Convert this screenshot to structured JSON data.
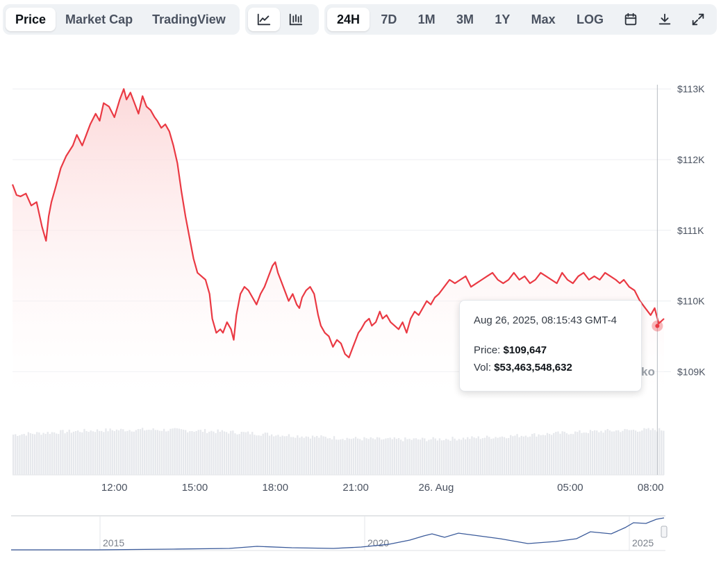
{
  "toolbar": {
    "metric_tabs": [
      "Price",
      "Market Cap",
      "TradingView"
    ],
    "active_metric": "Price",
    "chart_style_icons": [
      "line-chart-icon",
      "candlestick-chart-icon"
    ],
    "ranges": [
      "24H",
      "7D",
      "1M",
      "3M",
      "1Y",
      "Max"
    ],
    "active_range": "24H",
    "log_label": "LOG",
    "action_icons": [
      "calendar-icon",
      "download-icon",
      "expand-icon"
    ]
  },
  "colors": {
    "line": "#ea3943",
    "area_top": "#fcd7d8",
    "volume": "#e6e8ec",
    "navigator_line": "#3a5a9a",
    "grid": "#eceef1"
  },
  "tooltip": {
    "date": "Aug 26, 2025, 08:15:43 GMT-4",
    "price_label": "Price:",
    "price_value": "$109,647",
    "vol_label": "Vol:",
    "vol_value": "$53,463,548,632"
  },
  "watermark_text": "ko",
  "chart_data": {
    "type": "line",
    "title": "",
    "y_axis": {
      "ticks": [
        "$109K",
        "$110K",
        "$111K",
        "$112K",
        "$113K"
      ],
      "tick_values": [
        109000,
        110000,
        111000,
        112000,
        113000
      ],
      "range": [
        108650,
        113100
      ]
    },
    "x_axis": {
      "ticks": [
        "12:00",
        "15:00",
        "18:00",
        "21:00",
        "26. Aug",
        "05:00",
        "08:00"
      ],
      "tick_hours": [
        12,
        15,
        18,
        21,
        24,
        29,
        32
      ],
      "range_hours": [
        8.2,
        32.5
      ]
    },
    "series": [
      {
        "x_hours": [
          8.2,
          8.35,
          8.5,
          8.7,
          8.9,
          9.1,
          9.3,
          9.45,
          9.55,
          9.65,
          9.8,
          10.0,
          10.2,
          10.45,
          10.6,
          10.8,
          10.95,
          11.1,
          11.3,
          11.45,
          11.6,
          11.8,
          12.0,
          12.2,
          12.35,
          12.45,
          12.6,
          12.75,
          12.9,
          13.05,
          13.2,
          13.35,
          13.5,
          13.6,
          13.75,
          13.9,
          14.05,
          14.2,
          14.35,
          14.5,
          14.65,
          14.8,
          14.95,
          15.1,
          15.25,
          15.4,
          15.55,
          15.65,
          15.8,
          15.95,
          16.05,
          16.2,
          16.35,
          16.45,
          16.55,
          16.7,
          16.85,
          17.0,
          17.15,
          17.3,
          17.45,
          17.6,
          17.75,
          17.9,
          18.0,
          18.1,
          18.2,
          18.35,
          18.5,
          18.65,
          18.8,
          18.9,
          19.0,
          19.15,
          19.3,
          19.45,
          19.6,
          19.7,
          19.85,
          20.0,
          20.15,
          20.3,
          20.45,
          20.6,
          20.75,
          20.9,
          21.0,
          21.1,
          21.2,
          21.35,
          21.5,
          21.6,
          21.75,
          21.9,
          22.0,
          22.15,
          22.3,
          22.45,
          22.6,
          22.75,
          22.9,
          23.05,
          23.2,
          23.35,
          23.5,
          23.65,
          23.8,
          23.95,
          24.1,
          24.3,
          24.5,
          24.7,
          24.9,
          25.1,
          25.3,
          25.5,
          25.7,
          25.9,
          26.1,
          26.3,
          26.5,
          26.7,
          26.9,
          27.1,
          27.3,
          27.5,
          27.7,
          27.9,
          28.1,
          28.3,
          28.5,
          28.7,
          28.9,
          29.1,
          29.3,
          29.5,
          29.7,
          29.9,
          30.1,
          30.3,
          30.5,
          30.7,
          30.85,
          31.0,
          31.2,
          31.4,
          31.6,
          31.8,
          32.0,
          32.15,
          32.3,
          32.5
        ],
        "y_values": [
          111650,
          111500,
          111480,
          111520,
          111350,
          111400,
          111050,
          110850,
          111200,
          111400,
          111600,
          111880,
          112050,
          112200,
          112350,
          112200,
          112350,
          112500,
          112650,
          112550,
          112800,
          112750,
          112600,
          112850,
          113000,
          112850,
          112950,
          112800,
          112650,
          112900,
          112750,
          112700,
          112600,
          112550,
          112450,
          112500,
          112400,
          112200,
          111950,
          111550,
          111200,
          110900,
          110600,
          110400,
          110350,
          110300,
          110100,
          109750,
          109550,
          109600,
          109550,
          109700,
          109600,
          109450,
          109800,
          110100,
          110200,
          110150,
          110050,
          109950,
          110100,
          110200,
          110350,
          110500,
          110550,
          110400,
          110300,
          110150,
          110000,
          110100,
          109950,
          109900,
          110050,
          110150,
          110200,
          110100,
          109800,
          109650,
          109550,
          109500,
          109350,
          109450,
          109400,
          109250,
          109200,
          109350,
          109450,
          109550,
          109600,
          109700,
          109750,
          109650,
          109700,
          109850,
          109750,
          109800,
          109700,
          109650,
          109600,
          109700,
          109550,
          109750,
          109850,
          109800,
          109900,
          110000,
          109950,
          110050,
          110100,
          110200,
          110300,
          110250,
          110300,
          110350,
          110200,
          110250,
          110300,
          110350,
          110400,
          110300,
          110250,
          110300,
          110400,
          110300,
          110350,
          110250,
          110300,
          110400,
          110350,
          110300,
          110250,
          110400,
          110300,
          110250,
          110350,
          110400,
          110300,
          110350,
          110300,
          110400,
          110350,
          110300,
          110250,
          110300,
          110200,
          110150,
          110000,
          109900,
          109800,
          109900,
          109680,
          109750
        ]
      }
    ],
    "volume": {
      "type": "bar",
      "note_free": true
    },
    "highlight": {
      "x_hours": 32.25,
      "y_value": 109647
    },
    "navigator": {
      "ticks": [
        "2015",
        "2020",
        "2025"
      ]
    }
  }
}
